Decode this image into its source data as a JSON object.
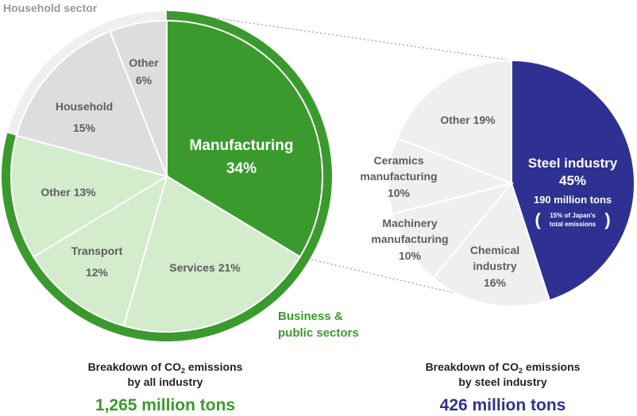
{
  "colors": {
    "green": "#3b9a2e",
    "light_green": "#d3eccb",
    "gray": "#dddddd",
    "light_gray": "#efefef",
    "navy": "#2e3192",
    "text_gray": "#5d5d5d",
    "dotted": "#aaaaaa"
  },
  "chart_data": [
    {
      "type": "pie",
      "values_unit": "%",
      "slices": [
        {
          "label": "Manufacturing",
          "value": 34,
          "value_text": "34%",
          "group": "business"
        },
        {
          "label": "Services 21%",
          "value": 21,
          "group": "business"
        },
        {
          "label": "Transport",
          "value": 12,
          "value_text": "12%",
          "group": "business"
        },
        {
          "label": "Other 13%",
          "value": 13,
          "group": "business"
        },
        {
          "label": "Household",
          "value": 15,
          "value_text": "15%",
          "group": "household"
        },
        {
          "label": "Other",
          "value": 6,
          "value_text": "6%",
          "group": "household"
        }
      ],
      "group_labels": {
        "household": "Household sector",
        "business_line1": "Business &",
        "business_line2": "public sectors"
      },
      "caption_line1": "Breakdown of CO",
      "caption_sub": "2",
      "caption_line1_end": " emissions",
      "caption_line2": "by all industry",
      "total": "1,265 million tons"
    },
    {
      "type": "pie",
      "values_unit": "%",
      "slices": [
        {
          "label": "Steel industry",
          "value": 45,
          "value_text": "45%",
          "detail": "190 million tons",
          "note_line1": "15% of Japan’s",
          "note_line2": "total emissions"
        },
        {
          "label_line1": "Chemical",
          "label_line2": "industry",
          "value": 16,
          "value_text": "16%"
        },
        {
          "label_line1": "Machinery",
          "label_line2": "manufacturing",
          "value": 10,
          "value_text": "10%"
        },
        {
          "label_line1": "Ceramics",
          "label_line2": "manufacturing",
          "value": 10,
          "value_text": "10%"
        },
        {
          "label": "Other 19%",
          "value": 19
        }
      ],
      "caption_line1": "Breakdown of CO",
      "caption_sub": "2",
      "caption_line1_end": " emissions",
      "caption_line2": "by steel industry",
      "total": "426 million tons"
    }
  ]
}
